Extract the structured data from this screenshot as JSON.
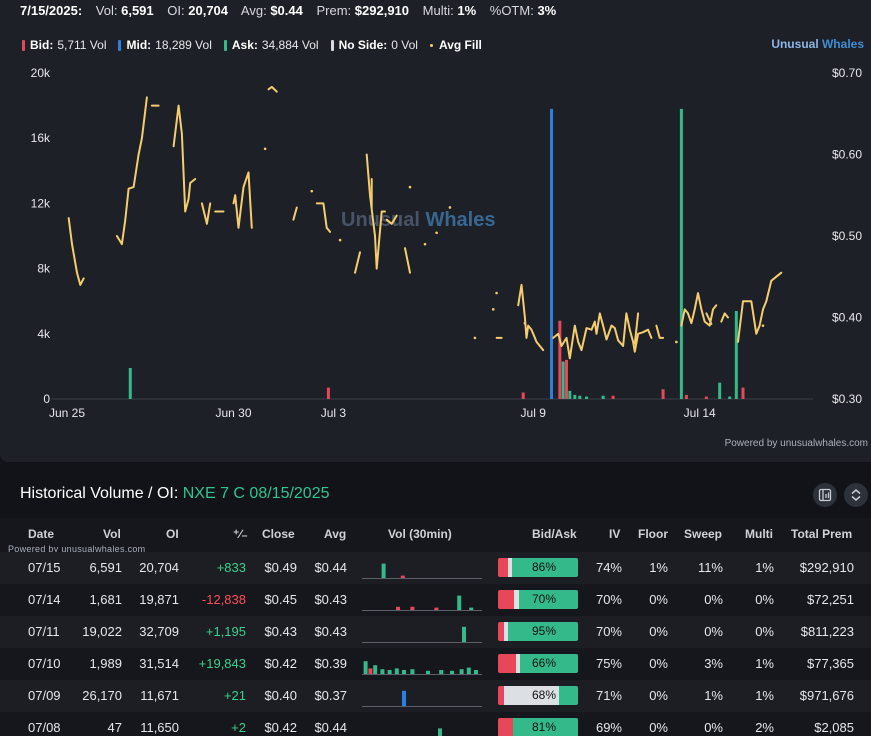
{
  "header": {
    "date": "7/15/2025:",
    "vol_label": "Vol:",
    "vol": "6,591",
    "oi_label": "OI:",
    "oi": "20,704",
    "avg_label": "Avg:",
    "avg": "$0.44",
    "prem_label": "Prem:",
    "prem": "$292,910",
    "multi_label": "Multi:",
    "multi": "1%",
    "otm_label": "%OTM:",
    "otm": "3%"
  },
  "legend": {
    "bid_label": "Bid:",
    "bid": "5,711 Vol",
    "mid_label": "Mid:",
    "mid": "18,289 Vol",
    "ask_label": "Ask:",
    "ask": "34,884 Vol",
    "noside_label": "No Side:",
    "noside": "0 Vol",
    "avgfill_label": "Avg Fill"
  },
  "brand": {
    "part1": "Unusual ",
    "part2": "Whales"
  },
  "watermark": {
    "part1": "Unusual ",
    "part2": "Whales"
  },
  "powered_chart": "Powered by unusualwhales.com",
  "colors": {
    "bid": "#e8475a",
    "mid": "#2b7fe0",
    "ask": "#33b98a",
    "avg_fill": "#f6cd6e",
    "background": "#1d2026"
  },
  "chart_data": {
    "type": "bar",
    "left_axis": {
      "ticks": [
        "0",
        "4k",
        "8k",
        "12k",
        "16k",
        "20k"
      ],
      "range": [
        0,
        20000
      ]
    },
    "right_axis": {
      "ticks": [
        "$0.30",
        "$0.40",
        "$0.50",
        "$0.60",
        "$0.70"
      ],
      "range": [
        0.3,
        0.7
      ]
    },
    "x_ticks": [
      {
        "label": "Jun 25",
        "day": 0
      },
      {
        "label": "Jun 30",
        "day": 5
      },
      {
        "label": "Jul 3",
        "day": 8
      },
      {
        "label": "Jul 9",
        "day": 14
      },
      {
        "label": "Jul 14",
        "day": 19
      }
    ],
    "bars": [
      {
        "day": 1.9,
        "side": "ask",
        "value": 1900
      },
      {
        "day": 7.85,
        "side": "bid",
        "value": 700
      },
      {
        "day": 13.7,
        "side": "bid",
        "value": 400
      },
      {
        "day": 14.55,
        "side": "mid",
        "value": 17800
      },
      {
        "day": 14.8,
        "side": "bid",
        "value": 4800
      },
      {
        "day": 14.9,
        "side": "ask",
        "value": 2300
      },
      {
        "day": 15.0,
        "side": "bid",
        "value": 2400
      },
      {
        "day": 15.1,
        "side": "ask",
        "value": 500
      },
      {
        "day": 15.25,
        "side": "ask",
        "value": 250
      },
      {
        "day": 15.4,
        "side": "ask",
        "value": 200
      },
      {
        "day": 15.6,
        "side": "ask",
        "value": 150
      },
      {
        "day": 16.1,
        "side": "ask",
        "value": 200
      },
      {
        "day": 16.4,
        "side": "bid",
        "value": 200
      },
      {
        "day": 17.9,
        "side": "bid",
        "value": 600
      },
      {
        "day": 18.45,
        "side": "ask",
        "value": 17800
      },
      {
        "day": 18.6,
        "side": "bid",
        "value": 250
      },
      {
        "day": 19.2,
        "side": "bid",
        "value": 150
      },
      {
        "day": 19.6,
        "side": "ask",
        "value": 1000
      },
      {
        "day": 19.9,
        "side": "ask",
        "value": 150
      },
      {
        "day": 20.1,
        "side": "ask",
        "value": 5400
      },
      {
        "day": 20.3,
        "side": "bid",
        "value": 700
      }
    ],
    "avg_fill_segments": [
      [
        [
          0.05,
          0.522
        ],
        [
          0.15,
          0.49
        ],
        [
          0.3,
          0.455
        ],
        [
          0.4,
          0.44
        ],
        [
          0.5,
          0.448
        ]
      ],
      [
        [
          1.5,
          0.5
        ],
        [
          1.65,
          0.49
        ],
        [
          1.75,
          0.52
        ],
        [
          1.85,
          0.558
        ],
        [
          2.0,
          0.56
        ],
        [
          2.15,
          0.6
        ],
        [
          2.25,
          0.62
        ],
        [
          2.4,
          0.67
        ]
      ],
      [
        [
          2.55,
          0.66
        ],
        [
          2.75,
          0.66
        ]
      ],
      [
        [
          3.2,
          0.61
        ],
        [
          3.35,
          0.66
        ],
        [
          3.45,
          0.625
        ],
        [
          3.55,
          0.53
        ],
        [
          3.65,
          0.545
        ],
        [
          3.7,
          0.565
        ],
        [
          3.85,
          0.57
        ]
      ],
      [
        [
          4.05,
          0.54
        ],
        [
          4.2,
          0.515
        ],
        [
          4.3,
          0.54
        ]
      ],
      [
        [
          4.45,
          0.53
        ],
        [
          4.7,
          0.53
        ]
      ],
      [
        [
          5.0,
          0.54
        ],
        [
          5.05,
          0.55
        ],
        [
          5.15,
          0.51
        ],
        [
          5.3,
          0.56
        ],
        [
          5.45,
          0.578
        ],
        [
          5.55,
          0.51
        ]
      ],
      [
        [
          6.05,
          0.68
        ],
        [
          6.15,
          0.683
        ],
        [
          6.3,
          0.677
        ]
      ],
      [
        [
          5.95,
          0.607
        ]
      ],
      [
        [
          6.8,
          0.52
        ],
        [
          6.9,
          0.535
        ]
      ],
      [
        [
          7.35,
          0.555
        ]
      ],
      [
        [
          7.5,
          0.54
        ],
        [
          7.7,
          0.54
        ],
        [
          7.8,
          0.51
        ],
        [
          7.9,
          0.505
        ]
      ],
      [
        [
          8.2,
          0.495
        ]
      ],
      [
        [
          8.65,
          0.455
        ],
        [
          8.8,
          0.48
        ]
      ],
      [
        [
          9.0,
          0.6
        ],
        [
          9.1,
          0.55
        ],
        [
          9.25,
          0.5
        ],
        [
          9.3,
          0.46
        ],
        [
          9.45,
          0.53
        ],
        [
          9.55,
          0.53
        ]
      ],
      [
        [
          9.15,
          0.57
        ],
        [
          9.15,
          0.535
        ]
      ],
      [
        [
          9.6,
          0.52
        ],
        [
          9.75,
          0.515
        ],
        [
          9.9,
          0.525
        ]
      ],
      [
        [
          10.15,
          0.485
        ],
        [
          10.3,
          0.455
        ]
      ],
      [
        [
          10.3,
          0.56
        ]
      ],
      [
        [
          10.75,
          0.49
        ]
      ],
      [
        [
          11.1,
          0.504
        ]
      ],
      [
        [
          11.5,
          0.535
        ]
      ],
      [
        [
          12.9,
          0.375
        ],
        [
          13.05,
          0.375
        ]
      ],
      [
        [
          13.55,
          0.415
        ],
        [
          13.65,
          0.44
        ],
        [
          13.75,
          0.4
        ],
        [
          13.8,
          0.375
        ],
        [
          13.85,
          0.39
        ],
        [
          13.95,
          0.385
        ],
        [
          14.05,
          0.375
        ],
        [
          14.1,
          0.37
        ],
        [
          14.3,
          0.36
        ]
      ],
      [
        [
          13.75,
          0.393
        ]
      ],
      [
        [
          12.9,
          0.43
        ]
      ],
      [
        [
          12.25,
          0.375
        ]
      ],
      [
        [
          12.8,
          0.41
        ]
      ],
      [
        [
          14.6,
          0.375
        ],
        [
          14.75,
          0.38
        ],
        [
          14.85,
          0.365
        ],
        [
          15.0,
          0.375
        ],
        [
          15.1,
          0.35
        ],
        [
          15.25,
          0.39
        ],
        [
          15.35,
          0.37
        ],
        [
          15.45,
          0.36
        ],
        [
          15.6,
          0.387
        ],
        [
          15.75,
          0.385
        ],
        [
          15.85,
          0.395
        ],
        [
          15.9,
          0.38
        ],
        [
          16.0,
          0.405
        ],
        [
          16.1,
          0.39
        ],
        [
          16.2,
          0.373
        ],
        [
          16.35,
          0.39
        ],
        [
          16.45,
          0.387
        ],
        [
          16.55,
          0.372
        ],
        [
          16.7,
          0.365
        ],
        [
          16.8,
          0.405
        ],
        [
          16.9,
          0.385
        ],
        [
          17.0,
          0.37
        ],
        [
          17.05,
          0.358
        ],
        [
          17.15,
          0.38
        ],
        [
          17.3,
          0.382
        ],
        [
          17.45,
          0.385
        ],
        [
          17.55,
          0.375
        ]
      ],
      [
        [
          17.15,
          0.405
        ],
        [
          17.05,
          0.368
        ]
      ],
      [
        [
          17.7,
          0.39
        ],
        [
          17.8,
          0.375
        ],
        [
          17.9,
          0.375
        ]
      ],
      [
        [
          18.3,
          0.37
        ]
      ],
      [
        [
          18.45,
          0.39
        ],
        [
          18.55,
          0.41
        ],
        [
          18.65,
          0.405
        ],
        [
          18.75,
          0.393
        ],
        [
          18.85,
          0.41
        ],
        [
          18.95,
          0.43
        ],
        [
          19.05,
          0.41
        ],
        [
          19.15,
          0.395
        ],
        [
          19.3,
          0.39
        ],
        [
          19.4,
          0.41
        ],
        [
          19.5,
          0.415
        ]
      ],
      [
        [
          19.2,
          0.405
        ],
        [
          19.35,
          0.392
        ]
      ],
      [
        [
          19.65,
          0.395
        ],
        [
          19.75,
          0.405
        ],
        [
          19.85,
          0.4
        ]
      ],
      [
        [
          20.15,
          0.37
        ],
        [
          20.3,
          0.42
        ],
        [
          20.45,
          0.42
        ],
        [
          20.55,
          0.42
        ],
        [
          20.7,
          0.38
        ],
        [
          20.8,
          0.39
        ],
        [
          20.9,
          0.41
        ],
        [
          21.0,
          0.42
        ],
        [
          21.15,
          0.445
        ],
        [
          21.3,
          0.45
        ],
        [
          21.45,
          0.455
        ]
      ],
      [
        [
          20.9,
          0.39
        ]
      ]
    ]
  },
  "section": {
    "title": "Historical Volume / OI:",
    "contract": "NXE 7 C 08/15/2025"
  },
  "table": {
    "headers": {
      "date": "Date",
      "vol": "Vol",
      "oi": "OI",
      "delta": "⁺∕₋",
      "close": "Close",
      "avg": "Avg",
      "vol30": "Vol (30min)",
      "bidask": "Bid/Ask",
      "iv": "IV",
      "floor": "Floor",
      "sweep": "Sweep",
      "multi": "Multi",
      "total_prem": "Total Prem"
    },
    "powered": "Powered by unusualwhales.com",
    "rows": [
      {
        "date": "07/15",
        "vol": "6,591",
        "oi": "20,704",
        "delta": "+833",
        "delta_sign": "pos",
        "close": "$0.49",
        "avg": "$0.44",
        "ba_bid": 0.13,
        "ba_mid": 0.05,
        "ba_ask": 0.82,
        "ba_label": "86%",
        "iv": "74%",
        "floor": "1%",
        "sweep": "11%",
        "multi": "1%",
        "total_prem": "$292,910",
        "spark": [
          {
            "p": 0.18,
            "v": 0.9,
            "s": "ask"
          },
          {
            "p": 0.34,
            "v": 0.15,
            "s": "bid"
          }
        ]
      },
      {
        "date": "07/14",
        "vol": "1,681",
        "oi": "19,871",
        "delta": "-12,838",
        "delta_sign": "neg",
        "close": "$0.45",
        "avg": "$0.43",
        "ba_bid": 0.2,
        "ba_mid": 0.06,
        "ba_ask": 0.74,
        "ba_label": "70%",
        "iv": "70%",
        "floor": "0%",
        "sweep": "0%",
        "multi": "0%",
        "total_prem": "$72,251",
        "spark": [
          {
            "p": 0.3,
            "v": 0.2,
            "s": "bid"
          },
          {
            "p": 0.42,
            "v": 0.2,
            "s": "bid"
          },
          {
            "p": 0.62,
            "v": 0.15,
            "s": "bid"
          },
          {
            "p": 0.81,
            "v": 0.9,
            "s": "ask"
          },
          {
            "p": 0.91,
            "v": 0.15,
            "s": "ask"
          }
        ]
      },
      {
        "date": "07/11",
        "vol": "19,022",
        "oi": "32,709",
        "delta": "+1,195",
        "delta_sign": "pos",
        "close": "$0.43",
        "avg": "$0.43",
        "ba_bid": 0.07,
        "ba_mid": 0.05,
        "ba_ask": 0.88,
        "ba_label": "95%",
        "iv": "70%",
        "floor": "0%",
        "sweep": "0%",
        "multi": "0%",
        "total_prem": "$811,223",
        "spark": [
          {
            "p": 0.85,
            "v": 0.95,
            "s": "ask"
          }
        ]
      },
      {
        "date": "07/10",
        "vol": "1,989",
        "oi": "31,514",
        "delta": "+19,843",
        "delta_sign": "pos",
        "close": "$0.42",
        "avg": "$0.39",
        "ba_bid": 0.22,
        "ba_mid": 0.05,
        "ba_ask": 0.73,
        "ba_label": "66%",
        "iv": "75%",
        "floor": "0%",
        "sweep": "3%",
        "multi": "1%",
        "total_prem": "$77,365",
        "spark": [
          {
            "p": 0.03,
            "v": 0.8,
            "s": "ask"
          },
          {
            "p": 0.07,
            "v": 0.35,
            "s": "bid"
          },
          {
            "p": 0.11,
            "v": 0.55,
            "s": "ask"
          },
          {
            "p": 0.17,
            "v": 0.3,
            "s": "ask"
          },
          {
            "p": 0.23,
            "v": 0.25,
            "s": "ask"
          },
          {
            "p": 0.29,
            "v": 0.35,
            "s": "ask"
          },
          {
            "p": 0.35,
            "v": 0.25,
            "s": "ask"
          },
          {
            "p": 0.42,
            "v": 0.3,
            "s": "ask"
          },
          {
            "p": 0.55,
            "v": 0.2,
            "s": "ask"
          },
          {
            "p": 0.66,
            "v": 0.25,
            "s": "ask"
          },
          {
            "p": 0.75,
            "v": 0.2,
            "s": "ask"
          },
          {
            "p": 0.83,
            "v": 0.3,
            "s": "ask"
          },
          {
            "p": 0.89,
            "v": 0.4,
            "s": "ask"
          },
          {
            "p": 0.95,
            "v": 0.25,
            "s": "ask"
          }
        ]
      },
      {
        "date": "07/09",
        "vol": "26,170",
        "oi": "11,671",
        "delta": "+21",
        "delta_sign": "pos",
        "close": "$0.40",
        "avg": "$0.37",
        "ba_bid": 0.08,
        "ba_mid": 0.68,
        "ba_ask": 0.24,
        "ba_label": "68%",
        "iv": "71%",
        "floor": "0%",
        "sweep": "1%",
        "multi": "1%",
        "total_prem": "$971,676",
        "spark": [
          {
            "p": 0.35,
            "v": 0.95,
            "s": "mid"
          }
        ]
      },
      {
        "date": "07/08",
        "vol": "47",
        "oi": "11,650",
        "delta": "+2",
        "delta_sign": "pos",
        "close": "$0.42",
        "avg": "$0.44",
        "ba_bid": 0.19,
        "ba_mid": 0.0,
        "ba_ask": 0.81,
        "ba_label": "81%",
        "iv": "69%",
        "floor": "0%",
        "sweep": "0%",
        "multi": "2%",
        "total_prem": "$2,085",
        "spark": [
          {
            "p": 0.65,
            "v": 0.6,
            "s": "ask"
          }
        ]
      }
    ]
  }
}
